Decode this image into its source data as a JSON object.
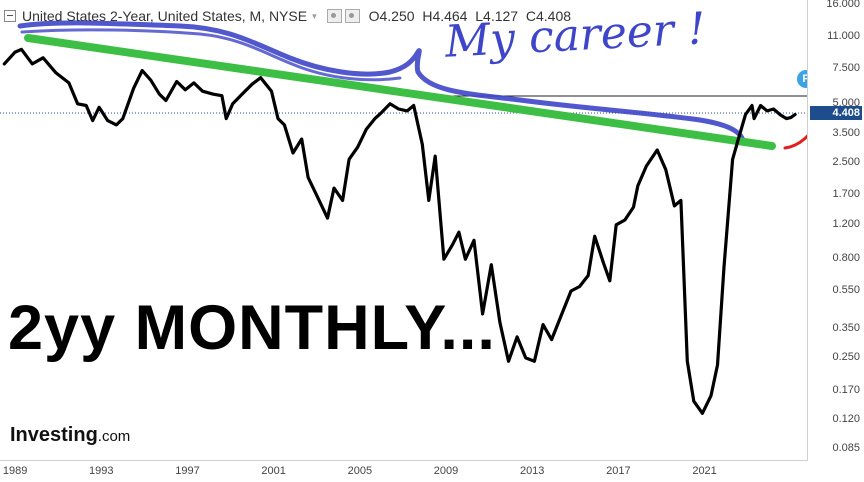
{
  "header": {
    "symbol_title": "United States 2-Year, United States, M, NYSE",
    "open": "O4.250",
    "high": "H4.464",
    "low": "L4.127",
    "close": "C4.408"
  },
  "overlay_text": "2yy MONTHLY...",
  "annotation_text": "My career !",
  "logo": {
    "name": "Investing",
    "suffix": ".com"
  },
  "current_price_label": "4.408",
  "event_badge": "P",
  "colors": {
    "price_line": "#000000",
    "trendline": "#3dbf45",
    "annotation": "#3e45c8",
    "arrow": "#e02020",
    "price_tag": "#1d4d8c"
  },
  "chart_data": {
    "type": "line",
    "title": "United States 2-Year, United States, M, NYSE",
    "xlabel": "",
    "ylabel": "",
    "y_scale": "log",
    "ylim": [
      0.075,
      17
    ],
    "xlim": [
      1988.3,
      2025.8
    ],
    "x_ticks": [
      "1989",
      "1993",
      "1997",
      "2001",
      "2005",
      "2009",
      "2013",
      "2017",
      "2021"
    ],
    "y_ticks": [
      "16.000",
      "11.000",
      "7.500",
      "5.000",
      "3.500",
      "2.500",
      "1.700",
      "1.200",
      "0.800",
      "0.550",
      "0.350",
      "0.250",
      "0.170",
      "0.120",
      "0.085"
    ],
    "series": [
      {
        "values": [
          [
            1988.5,
            8.0
          ],
          [
            1989.0,
            9.2
          ],
          [
            1989.3,
            9.5
          ],
          [
            1989.8,
            8.0
          ],
          [
            1990.3,
            8.6
          ],
          [
            1990.9,
            7.2
          ],
          [
            1991.5,
            6.4
          ],
          [
            1991.9,
            5.0
          ],
          [
            1992.3,
            4.9
          ],
          [
            1992.6,
            4.1
          ],
          [
            1992.9,
            4.8
          ],
          [
            1993.3,
            4.1
          ],
          [
            1993.7,
            3.9
          ],
          [
            1994.0,
            4.2
          ],
          [
            1994.5,
            6.0
          ],
          [
            1994.9,
            7.4
          ],
          [
            1995.3,
            6.6
          ],
          [
            1995.7,
            5.6
          ],
          [
            1996.0,
            5.2
          ],
          [
            1996.5,
            6.5
          ],
          [
            1996.9,
            5.9
          ],
          [
            1997.3,
            6.4
          ],
          [
            1997.7,
            5.8
          ],
          [
            1998.2,
            5.6
          ],
          [
            1998.6,
            5.5
          ],
          [
            1998.8,
            4.2
          ],
          [
            1999.1,
            5.0
          ],
          [
            1999.6,
            5.7
          ],
          [
            2000.0,
            6.3
          ],
          [
            2000.4,
            6.8
          ],
          [
            2000.9,
            5.8
          ],
          [
            2001.2,
            4.2
          ],
          [
            2001.5,
            3.9
          ],
          [
            2001.9,
            2.8
          ],
          [
            2002.3,
            3.3
          ],
          [
            2002.6,
            2.1
          ],
          [
            2003.0,
            1.7
          ],
          [
            2003.5,
            1.3
          ],
          [
            2003.8,
            1.85
          ],
          [
            2004.2,
            1.6
          ],
          [
            2004.5,
            2.6
          ],
          [
            2004.9,
            3.0
          ],
          [
            2005.3,
            3.7
          ],
          [
            2005.7,
            4.2
          ],
          [
            2006.0,
            4.5
          ],
          [
            2006.4,
            5.0
          ],
          [
            2006.8,
            4.7
          ],
          [
            2007.2,
            4.6
          ],
          [
            2007.5,
            4.9
          ],
          [
            2007.9,
            3.1
          ],
          [
            2008.2,
            1.6
          ],
          [
            2008.5,
            2.7
          ],
          [
            2008.9,
            0.8
          ],
          [
            2009.3,
            0.95
          ],
          [
            2009.6,
            1.1
          ],
          [
            2009.9,
            0.8
          ],
          [
            2010.3,
            1.0
          ],
          [
            2010.7,
            0.42
          ],
          [
            2011.1,
            0.75
          ],
          [
            2011.5,
            0.38
          ],
          [
            2011.9,
            0.24
          ],
          [
            2012.3,
            0.32
          ],
          [
            2012.7,
            0.25
          ],
          [
            2013.1,
            0.24
          ],
          [
            2013.5,
            0.37
          ],
          [
            2013.9,
            0.31
          ],
          [
            2014.3,
            0.4
          ],
          [
            2014.8,
            0.55
          ],
          [
            2015.2,
            0.58
          ],
          [
            2015.6,
            0.66
          ],
          [
            2015.9,
            1.05
          ],
          [
            2016.3,
            0.77
          ],
          [
            2016.6,
            0.62
          ],
          [
            2016.9,
            1.2
          ],
          [
            2017.3,
            1.27
          ],
          [
            2017.7,
            1.48
          ],
          [
            2017.9,
            1.9
          ],
          [
            2018.3,
            2.4
          ],
          [
            2018.8,
            2.9
          ],
          [
            2019.2,
            2.3
          ],
          [
            2019.6,
            1.5
          ],
          [
            2019.9,
            1.6
          ],
          [
            2020.2,
            0.24
          ],
          [
            2020.5,
            0.15
          ],
          [
            2020.9,
            0.13
          ],
          [
            2021.3,
            0.16
          ],
          [
            2021.6,
            0.23
          ],
          [
            2021.9,
            0.73
          ],
          [
            2022.3,
            2.6
          ],
          [
            2022.6,
            3.4
          ],
          [
            2022.9,
            4.4
          ],
          [
            2023.2,
            4.9
          ],
          [
            2023.3,
            4.2
          ],
          [
            2023.6,
            4.9
          ],
          [
            2023.9,
            4.6
          ],
          [
            2024.2,
            4.7
          ],
          [
            2024.5,
            4.4
          ],
          [
            2024.8,
            4.2
          ],
          [
            2025.0,
            4.25
          ],
          [
            2025.2,
            4.408
          ]
        ]
      }
    ]
  }
}
